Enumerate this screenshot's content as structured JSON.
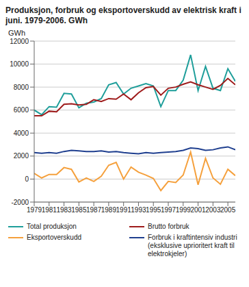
{
  "chart_data": {
    "type": "line",
    "title": "Produksjon, forbruk og eksportoverskudd av elektrisk kraft i juni. 1979-2006. GWh",
    "y_label": "GWh",
    "x": [
      1979,
      1980,
      1981,
      1982,
      1983,
      1984,
      1985,
      1986,
      1987,
      1988,
      1989,
      1990,
      1991,
      1992,
      1993,
      1994,
      1995,
      1996,
      1997,
      1998,
      1999,
      2000,
      2001,
      2002,
      2003,
      2004,
      2005,
      2006
    ],
    "xlim": [
      1979,
      2006
    ],
    "xticks": [
      1979,
      1981,
      1983,
      1985,
      1987,
      1989,
      1991,
      1993,
      1995,
      1997,
      1999,
      2001,
      2003,
      2005
    ],
    "ylim": [
      -2000,
      12000
    ],
    "yticks": [
      -2000,
      0,
      2000,
      4000,
      6000,
      8000,
      10000,
      12000
    ],
    "grid": true,
    "series": [
      {
        "name": "Total produksjon",
        "color": "#1e9e9a",
        "values": [
          6000,
          5600,
          6300,
          6250,
          7450,
          7400,
          6200,
          6600,
          6700,
          7000,
          8200,
          8400,
          7400,
          7900,
          8100,
          8300,
          8100,
          6300,
          7700,
          7700,
          8600,
          10800,
          7700,
          9800,
          7900,
          7700,
          9600,
          8500
        ]
      },
      {
        "name": "Brutto forbruk",
        "color": "#9e1b1b",
        "values": [
          5500,
          5500,
          5900,
          5850,
          6500,
          6550,
          6450,
          6500,
          6900,
          6750,
          7000,
          6950,
          7400,
          6900,
          7500,
          7950,
          8050,
          7300,
          7900,
          8000,
          8250,
          8450,
          8200,
          8000,
          7800,
          8150,
          8750,
          8200
        ]
      },
      {
        "name": "Eksportoverskudd",
        "color": "#f5a03c",
        "values": [
          500,
          100,
          400,
          400,
          1000,
          850,
          -250,
          100,
          -200,
          250,
          1200,
          1450,
          0,
          1050,
          600,
          350,
          50,
          -1000,
          -200,
          -300,
          350,
          2350,
          -500,
          1800,
          100,
          -450,
          850,
          300
        ]
      },
      {
        "name": "Forbruk i kraftintensiv industri (eksklusive uprioritert kraft til elektrokjeler)",
        "color": "#1f3f8f",
        "values": [
          2300,
          2250,
          2300,
          2250,
          2400,
          2500,
          2450,
          2400,
          2400,
          2450,
          2350,
          2400,
          2300,
          2250,
          2200,
          2300,
          2250,
          2300,
          2350,
          2400,
          2500,
          2700,
          2650,
          2500,
          2550,
          2700,
          2800,
          2550
        ]
      }
    ]
  }
}
